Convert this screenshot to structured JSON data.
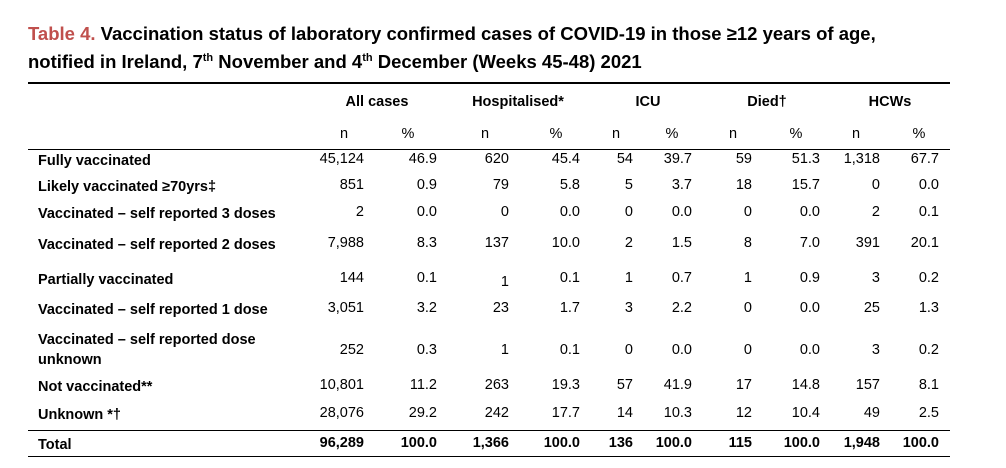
{
  "title": {
    "table_num": "Table 4.",
    "line1": "Vaccination status of laboratory confirmed cases of COVID-19 in those ≥12 years of age,",
    "line2_pre": "notified in Ireland, 7",
    "sup1": "th",
    "line2_mid": " November and 4",
    "sup2": "th",
    "line2_post": " December (Weeks 45-48) 2021"
  },
  "groups": [
    "All cases",
    "Hospitalised*",
    "ICU",
    "Died†",
    "HCWs"
  ],
  "subheaders": [
    "n",
    "%",
    "n",
    "%",
    "n",
    "%",
    "n",
    "%",
    "n",
    "%"
  ],
  "rows": [
    {
      "label": "Fully vaccinated",
      "values": [
        "45,124",
        "46.9",
        "620",
        "45.4",
        "54",
        "39.7",
        "59",
        "51.3",
        "1,318",
        "67.7"
      ]
    },
    {
      "label": "Likely vaccinated ≥70yrs‡",
      "values": [
        "851",
        "0.9",
        "79",
        "5.8",
        "5",
        "3.7",
        "18",
        "15.7",
        "0",
        "0.0"
      ]
    },
    {
      "label": "Vaccinated – self reported 3 doses",
      "values": [
        "2",
        "0.0",
        "0",
        "0.0",
        "0",
        "0.0",
        "0",
        "0.0",
        "2",
        "0.1"
      ]
    },
    {
      "label": "Vaccinated – self reported 2 doses",
      "values": [
        "7,988",
        "8.3",
        "137",
        "10.0",
        "2",
        "1.5",
        "8",
        "7.0",
        "391",
        "20.1"
      ]
    },
    {
      "label": "Partially vaccinated",
      "values": [
        "144",
        "0.1",
        "1",
        "0.1",
        "1",
        "0.7",
        "1",
        "0.9",
        "3",
        "0.2"
      ]
    },
    {
      "label": "Vaccinated – self reported 1 dose",
      "values": [
        "3,051",
        "3.2",
        "23",
        "1.7",
        "3",
        "2.2",
        "0",
        "0.0",
        "25",
        "1.3"
      ]
    },
    {
      "label": "Vaccinated – self reported dose unknown",
      "values": [
        "252",
        "0.3",
        "1",
        "0.1",
        "0",
        "0.0",
        "0",
        "0.0",
        "3",
        "0.2"
      ]
    },
    {
      "label": "Not vaccinated**",
      "values": [
        "10,801",
        "11.2",
        "263",
        "19.3",
        "57",
        "41.9",
        "17",
        "14.8",
        "157",
        "8.1"
      ]
    },
    {
      "label": "Unknown *†",
      "values": [
        "28,076",
        "29.2",
        "242",
        "17.7",
        "14",
        "10.3",
        "12",
        "10.4",
        "49",
        "2.5"
      ]
    }
  ],
  "total": {
    "label": "Total",
    "values": [
      "96,289",
      "100.0",
      "1,366",
      "100.0",
      "136",
      "100.0",
      "115",
      "100.0",
      "1,948",
      "100.0"
    ]
  }
}
